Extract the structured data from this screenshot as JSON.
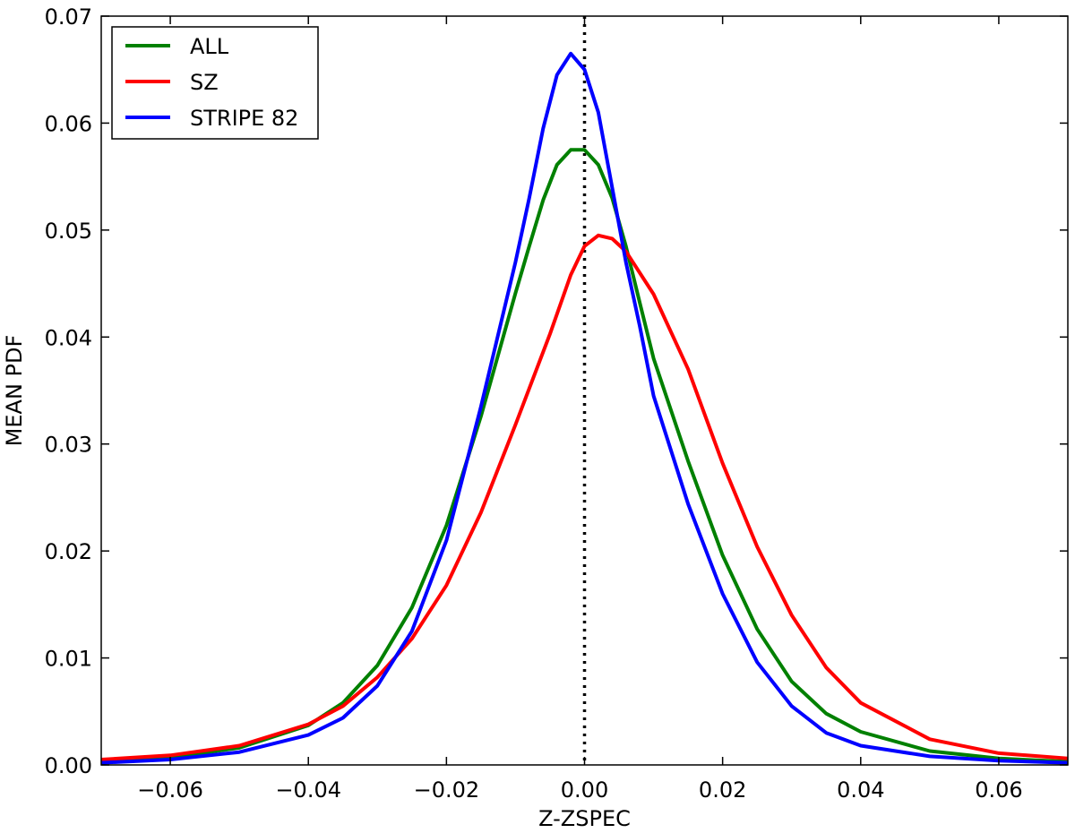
{
  "chart_data": {
    "type": "line",
    "title": "",
    "xlabel": "Z-ZSPEC",
    "ylabel": "MEAN PDF",
    "xlim": [
      -0.07,
      0.07
    ],
    "ylim": [
      0.0,
      0.07
    ],
    "grid": false,
    "legend_position": "top-left",
    "x_ticks": [
      -0.06,
      -0.04,
      -0.02,
      0.0,
      0.02,
      0.04,
      0.06
    ],
    "x_tick_labels": [
      "−0.06",
      "−0.04",
      "−0.02",
      "0.00",
      "0.02",
      "0.04",
      "0.06"
    ],
    "y_ticks": [
      0.0,
      0.01,
      0.02,
      0.03,
      0.04,
      0.05,
      0.06,
      0.07
    ],
    "y_tick_labels": [
      "0.00",
      "0.01",
      "0.02",
      "0.03",
      "0.04",
      "0.05",
      "0.06",
      "0.07"
    ],
    "reference_line": {
      "x": 0.0,
      "style": "dotted",
      "color": "#000000"
    },
    "series": [
      {
        "name": "ALL",
        "color": "#008000",
        "x": [
          -0.07,
          -0.06,
          -0.05,
          -0.04,
          -0.035,
          -0.03,
          -0.025,
          -0.02,
          -0.015,
          -0.01,
          -0.008,
          -0.006,
          -0.004,
          -0.002,
          0.0,
          0.002,
          0.004,
          0.006,
          0.008,
          0.01,
          0.015,
          0.02,
          0.025,
          0.03,
          0.035,
          0.04,
          0.05,
          0.06,
          0.07
        ],
        "y": [
          0.0003,
          0.0007,
          0.0016,
          0.0037,
          0.0058,
          0.0093,
          0.0147,
          0.0224,
          0.0326,
          0.0441,
          0.0485,
          0.0528,
          0.0561,
          0.0575,
          0.0575,
          0.0561,
          0.053,
          0.0485,
          0.0432,
          0.038,
          0.0284,
          0.0196,
          0.0127,
          0.0078,
          0.0048,
          0.0031,
          0.0013,
          0.0006,
          0.0003
        ]
      },
      {
        "name": "SZ",
        "color": "#ff0000",
        "x": [
          -0.07,
          -0.06,
          -0.05,
          -0.04,
          -0.035,
          -0.03,
          -0.025,
          -0.02,
          -0.015,
          -0.01,
          -0.005,
          -0.002,
          0.0,
          0.002,
          0.004,
          0.006,
          0.01,
          0.015,
          0.02,
          0.025,
          0.03,
          0.035,
          0.04,
          0.05,
          0.06,
          0.07
        ],
        "y": [
          0.0005,
          0.0009,
          0.0018,
          0.0038,
          0.0055,
          0.0082,
          0.0118,
          0.0168,
          0.0236,
          0.0318,
          0.0403,
          0.0458,
          0.0485,
          0.0495,
          0.0492,
          0.048,
          0.044,
          0.037,
          0.0282,
          0.0204,
          0.014,
          0.0091,
          0.0058,
          0.0024,
          0.0011,
          0.0006
        ]
      },
      {
        "name": "STRIPE 82",
        "color": "#0000ff",
        "x": [
          -0.07,
          -0.06,
          -0.05,
          -0.04,
          -0.035,
          -0.03,
          -0.025,
          -0.02,
          -0.015,
          -0.01,
          -0.008,
          -0.006,
          -0.004,
          -0.002,
          0.0,
          0.002,
          0.004,
          0.006,
          0.008,
          0.01,
          0.015,
          0.02,
          0.025,
          0.03,
          0.035,
          0.04,
          0.05,
          0.06,
          0.07
        ],
        "y": [
          0.0002,
          0.0005,
          0.0012,
          0.0028,
          0.0044,
          0.0074,
          0.0125,
          0.021,
          0.0335,
          0.047,
          0.053,
          0.0595,
          0.0645,
          0.0665,
          0.065,
          0.061,
          0.054,
          0.047,
          0.041,
          0.0345,
          0.0244,
          0.016,
          0.0096,
          0.0055,
          0.003,
          0.0018,
          0.0008,
          0.0004,
          0.0002
        ]
      }
    ]
  }
}
